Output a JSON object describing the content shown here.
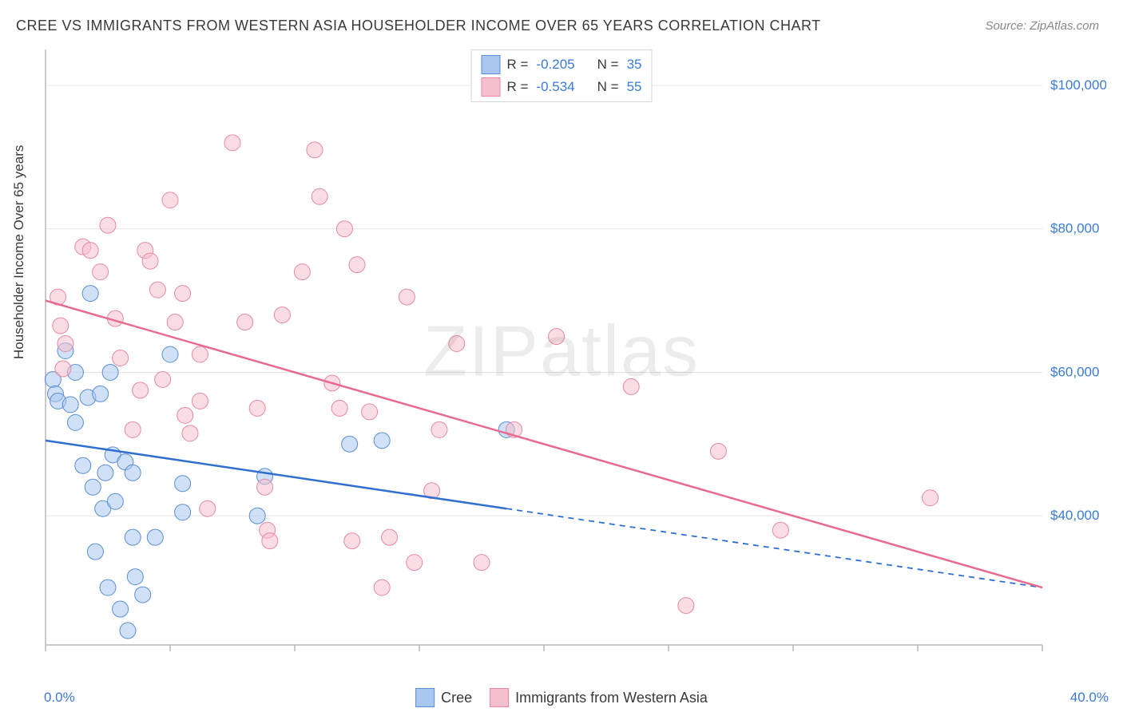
{
  "title": "CREE VS IMMIGRANTS FROM WESTERN ASIA HOUSEHOLDER INCOME OVER 65 YEARS CORRELATION CHART",
  "source": "Source: ZipAtlas.com",
  "yaxis_label": "Householder Income Over 65 years",
  "chart": {
    "type": "scatter",
    "xlim": [
      0,
      40
    ],
    "ylim": [
      22000,
      105000
    ],
    "x_min_label": "0.0%",
    "x_max_label": "40.0%",
    "xtick_step": 5,
    "yticks": [
      40000,
      60000,
      80000,
      100000
    ],
    "ytick_labels": [
      "$40,000",
      "$60,000",
      "$80,000",
      "$100,000"
    ],
    "grid_color": "#e6e6e6",
    "axis_color": "#b8b8b8",
    "tick_color": "#b8b8b8",
    "background_color": "#ffffff",
    "marker_radius": 10,
    "marker_opacity": 0.55,
    "line_width": 2.5,
    "watermark": "ZIPatlas",
    "legend_top": [
      {
        "swatch_fill": "#a9c6ef",
        "swatch_border": "#5a8fd6",
        "r_label": "R =",
        "r_value": "-0.205",
        "n_label": "N =",
        "n_value": "35"
      },
      {
        "swatch_fill": "#f6bfcd",
        "swatch_border": "#e48aa3",
        "r_label": "R =",
        "r_value": "-0.534",
        "n_label": "N =",
        "n_value": "55"
      }
    ],
    "legend_bottom": [
      {
        "swatch_fill": "#a9c6ef",
        "swatch_border": "#5a8fd6",
        "label": "Cree"
      },
      {
        "swatch_fill": "#f6bfcd",
        "swatch_border": "#e48aa3",
        "label": "Immigrants from Western Asia"
      }
    ],
    "series": [
      {
        "name": "Cree",
        "color_fill": "#a9c6ef",
        "color_stroke": "#5a8fd6",
        "trend_color": "#2f6fd0",
        "trend": {
          "x1": 0,
          "y1": 50500,
          "x2": 18.5,
          "y2": 41000
        },
        "trend_ext": {
          "x1": 18.5,
          "y1": 41000,
          "x2": 40,
          "y2": 30000
        },
        "points": [
          {
            "x": 0.3,
            "y": 59000
          },
          {
            "x": 0.4,
            "y": 57000
          },
          {
            "x": 0.5,
            "y": 56000
          },
          {
            "x": 0.8,
            "y": 63000
          },
          {
            "x": 1.0,
            "y": 55500
          },
          {
            "x": 1.2,
            "y": 53000
          },
          {
            "x": 1.2,
            "y": 60000
          },
          {
            "x": 1.5,
            "y": 47000
          },
          {
            "x": 1.7,
            "y": 56500
          },
          {
            "x": 1.8,
            "y": 71000
          },
          {
            "x": 1.9,
            "y": 44000
          },
          {
            "x": 2.0,
            "y": 35000
          },
          {
            "x": 2.2,
            "y": 57000
          },
          {
            "x": 2.3,
            "y": 41000
          },
          {
            "x": 2.4,
            "y": 46000
          },
          {
            "x": 2.5,
            "y": 30000
          },
          {
            "x": 2.6,
            "y": 60000
          },
          {
            "x": 2.7,
            "y": 48500
          },
          {
            "x": 2.8,
            "y": 42000
          },
          {
            "x": 3.0,
            "y": 27000
          },
          {
            "x": 3.2,
            "y": 47500
          },
          {
            "x": 3.3,
            "y": 24000
          },
          {
            "x": 3.5,
            "y": 37000
          },
          {
            "x": 3.5,
            "y": 46000
          },
          {
            "x": 3.6,
            "y": 31500
          },
          {
            "x": 3.9,
            "y": 29000
          },
          {
            "x": 4.4,
            "y": 37000
          },
          {
            "x": 5.0,
            "y": 62500
          },
          {
            "x": 5.5,
            "y": 44500
          },
          {
            "x": 5.5,
            "y": 40500
          },
          {
            "x": 8.5,
            "y": 40000
          },
          {
            "x": 8.8,
            "y": 45500
          },
          {
            "x": 12.2,
            "y": 50000
          },
          {
            "x": 13.5,
            "y": 50500
          },
          {
            "x": 18.5,
            "y": 52000
          }
        ]
      },
      {
        "name": "Immigrants from Western Asia",
        "color_fill": "#f6bfcd",
        "color_stroke": "#e48aa3",
        "trend_color": "#e86b8f",
        "trend": {
          "x1": 0,
          "y1": 70000,
          "x2": 40,
          "y2": 30000
        },
        "points": [
          {
            "x": 0.5,
            "y": 70500
          },
          {
            "x": 0.6,
            "y": 66500
          },
          {
            "x": 0.8,
            "y": 64000
          },
          {
            "x": 0.7,
            "y": 60500
          },
          {
            "x": 1.5,
            "y": 77500
          },
          {
            "x": 1.8,
            "y": 77000
          },
          {
            "x": 2.2,
            "y": 74000
          },
          {
            "x": 2.5,
            "y": 80500
          },
          {
            "x": 2.8,
            "y": 67500
          },
          {
            "x": 3.0,
            "y": 62000
          },
          {
            "x": 3.5,
            "y": 52000
          },
          {
            "x": 3.8,
            "y": 57500
          },
          {
            "x": 4.0,
            "y": 77000
          },
          {
            "x": 4.2,
            "y": 75500
          },
          {
            "x": 4.5,
            "y": 71500
          },
          {
            "x": 4.7,
            "y": 59000
          },
          {
            "x": 5.0,
            "y": 84000
          },
          {
            "x": 5.2,
            "y": 67000
          },
          {
            "x": 5.5,
            "y": 71000
          },
          {
            "x": 5.6,
            "y": 54000
          },
          {
            "x": 5.8,
            "y": 51500
          },
          {
            "x": 6.2,
            "y": 56000
          },
          {
            "x": 6.2,
            "y": 62500
          },
          {
            "x": 6.5,
            "y": 41000
          },
          {
            "x": 7.5,
            "y": 92000
          },
          {
            "x": 8.0,
            "y": 67000
          },
          {
            "x": 8.5,
            "y": 55000
          },
          {
            "x": 8.8,
            "y": 44000
          },
          {
            "x": 8.9,
            "y": 38000
          },
          {
            "x": 9.0,
            "y": 36500
          },
          {
            "x": 9.5,
            "y": 68000
          },
          {
            "x": 10.3,
            "y": 74000
          },
          {
            "x": 10.8,
            "y": 91000
          },
          {
            "x": 11.0,
            "y": 84500
          },
          {
            "x": 11.5,
            "y": 58500
          },
          {
            "x": 11.8,
            "y": 55000
          },
          {
            "x": 12.0,
            "y": 80000
          },
          {
            "x": 12.3,
            "y": 36500
          },
          {
            "x": 12.5,
            "y": 75000
          },
          {
            "x": 13.0,
            "y": 54500
          },
          {
            "x": 13.5,
            "y": 30000
          },
          {
            "x": 13.8,
            "y": 37000
          },
          {
            "x": 14.5,
            "y": 70500
          },
          {
            "x": 14.8,
            "y": 33500
          },
          {
            "x": 15.5,
            "y": 43500
          },
          {
            "x": 15.8,
            "y": 52000
          },
          {
            "x": 16.5,
            "y": 64000
          },
          {
            "x": 17.5,
            "y": 33500
          },
          {
            "x": 18.8,
            "y": 52000
          },
          {
            "x": 20.5,
            "y": 65000
          },
          {
            "x": 23.5,
            "y": 58000
          },
          {
            "x": 25.7,
            "y": 27500
          },
          {
            "x": 27.0,
            "y": 49000
          },
          {
            "x": 29.5,
            "y": 38000
          },
          {
            "x": 35.5,
            "y": 42500
          }
        ]
      }
    ]
  }
}
